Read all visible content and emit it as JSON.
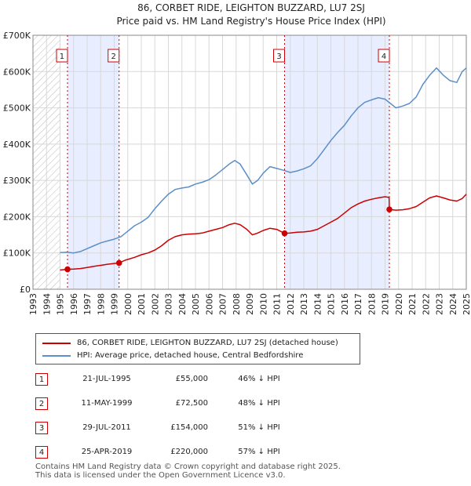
{
  "chart_data": {
    "type": "line",
    "title": "86, CORBET RIDE, LEIGHTON BUZZARD, LU7 2SJ",
    "subtitle": "Price paid vs. HM Land Registry's House Price Index (HPI)",
    "xlim": [
      1993,
      2025
    ],
    "ylim": [
      0,
      700000
    ],
    "xticks": [
      "1993",
      "1994",
      "1995",
      "1996",
      "1997",
      "1998",
      "1999",
      "2000",
      "2001",
      "2002",
      "2003",
      "2004",
      "2005",
      "2006",
      "2007",
      "2008",
      "2009",
      "2010",
      "2011",
      "2012",
      "2013",
      "2014",
      "2015",
      "2016",
      "2017",
      "2018",
      "2019",
      "2020",
      "2021",
      "2022",
      "2023",
      "2024",
      "2025"
    ],
    "yticks": [
      {
        "value": 0,
        "label": "£0"
      },
      {
        "value": 100000,
        "label": "£100K"
      },
      {
        "value": 200000,
        "label": "£200K"
      },
      {
        "value": 300000,
        "label": "£300K"
      },
      {
        "value": 400000,
        "label": "£400K"
      },
      {
        "value": 500000,
        "label": "£500K"
      },
      {
        "value": 600000,
        "label": "£600K"
      },
      {
        "value": 700000,
        "label": "£700K"
      }
    ],
    "hatched_range": [
      1993,
      1995.0
    ],
    "series": [
      {
        "name": "86, CORBET RIDE, LEIGHTON BUZZARD, LU7 2SJ (detached house)",
        "color": "#cc0000",
        "points": [
          [
            1995.0,
            53000
          ],
          [
            1995.55,
            55000
          ],
          [
            1996.0,
            55500
          ],
          [
            1996.5,
            57000
          ],
          [
            1997.0,
            60000
          ],
          [
            1997.5,
            63000
          ],
          [
            1998.0,
            66000
          ],
          [
            1998.5,
            69000
          ],
          [
            1999.0,
            71000
          ],
          [
            1999.36,
            72500
          ],
          [
            1999.8,
            80000
          ],
          [
            2000.5,
            88000
          ],
          [
            2001.0,
            95000
          ],
          [
            2001.5,
            100000
          ],
          [
            2002.0,
            108000
          ],
          [
            2002.5,
            120000
          ],
          [
            2003.0,
            135000
          ],
          [
            2003.5,
            145000
          ],
          [
            2004.0,
            150000
          ],
          [
            2004.5,
            152000
          ],
          [
            2005.0,
            153000
          ],
          [
            2005.5,
            155000
          ],
          [
            2006.0,
            160000
          ],
          [
            2006.5,
            165000
          ],
          [
            2007.0,
            170000
          ],
          [
            2007.5,
            178000
          ],
          [
            2007.9,
            182000
          ],
          [
            2008.3,
            178000
          ],
          [
            2008.8,
            165000
          ],
          [
            2009.2,
            150000
          ],
          [
            2009.6,
            155000
          ],
          [
            2010.0,
            162000
          ],
          [
            2010.5,
            168000
          ],
          [
            2011.0,
            165000
          ],
          [
            2011.58,
            154000
          ],
          [
            2012.0,
            155000
          ],
          [
            2012.5,
            157000
          ],
          [
            2013.0,
            158000
          ],
          [
            2013.5,
            160000
          ],
          [
            2014.0,
            165000
          ],
          [
            2014.5,
            175000
          ],
          [
            2015.0,
            185000
          ],
          [
            2015.5,
            195000
          ],
          [
            2016.0,
            210000
          ],
          [
            2016.5,
            225000
          ],
          [
            2017.0,
            235000
          ],
          [
            2017.5,
            243000
          ],
          [
            2018.0,
            248000
          ],
          [
            2018.5,
            252000
          ],
          [
            2019.0,
            255000
          ],
          [
            2019.3,
            253000
          ],
          [
            2019.32,
            220000
          ],
          [
            2019.8,
            218000
          ],
          [
            2020.3,
            219000
          ],
          [
            2020.8,
            222000
          ],
          [
            2021.3,
            228000
          ],
          [
            2021.8,
            240000
          ],
          [
            2022.3,
            252000
          ],
          [
            2022.8,
            257000
          ],
          [
            2023.3,
            252000
          ],
          [
            2023.8,
            246000
          ],
          [
            2024.3,
            243000
          ],
          [
            2024.7,
            250000
          ],
          [
            2025.0,
            262000
          ]
        ]
      },
      {
        "name": "HPI: Average price, detached house, Central Bedfordshire",
        "color": "#5b8fc7",
        "points": [
          [
            1995.0,
            101000
          ],
          [
            1995.5,
            102000
          ],
          [
            1996.0,
            100000
          ],
          [
            1996.5,
            104000
          ],
          [
            1997.0,
            112000
          ],
          [
            1997.5,
            120000
          ],
          [
            1998.0,
            128000
          ],
          [
            1998.5,
            133000
          ],
          [
            1999.0,
            138000
          ],
          [
            1999.5,
            145000
          ],
          [
            2000.0,
            160000
          ],
          [
            2000.5,
            175000
          ],
          [
            2001.0,
            185000
          ],
          [
            2001.5,
            198000
          ],
          [
            2002.0,
            222000
          ],
          [
            2002.5,
            243000
          ],
          [
            2003.0,
            262000
          ],
          [
            2003.5,
            275000
          ],
          [
            2004.0,
            279000
          ],
          [
            2004.5,
            282000
          ],
          [
            2005.0,
            290000
          ],
          [
            2005.5,
            295000
          ],
          [
            2006.0,
            302000
          ],
          [
            2006.5,
            315000
          ],
          [
            2007.0,
            330000
          ],
          [
            2007.5,
            345000
          ],
          [
            2007.9,
            355000
          ],
          [
            2008.3,
            345000
          ],
          [
            2008.8,
            315000
          ],
          [
            2009.2,
            290000
          ],
          [
            2009.6,
            300000
          ],
          [
            2010.0,
            320000
          ],
          [
            2010.5,
            338000
          ],
          [
            2011.0,
            333000
          ],
          [
            2011.5,
            328000
          ],
          [
            2012.0,
            322000
          ],
          [
            2012.5,
            326000
          ],
          [
            2013.0,
            332000
          ],
          [
            2013.5,
            340000
          ],
          [
            2014.0,
            360000
          ],
          [
            2014.5,
            385000
          ],
          [
            2015.0,
            410000
          ],
          [
            2015.5,
            432000
          ],
          [
            2016.0,
            452000
          ],
          [
            2016.5,
            478000
          ],
          [
            2017.0,
            500000
          ],
          [
            2017.5,
            515000
          ],
          [
            2018.0,
            522000
          ],
          [
            2018.5,
            528000
          ],
          [
            2019.0,
            524000
          ],
          [
            2019.4,
            512000
          ],
          [
            2019.8,
            500000
          ],
          [
            2020.3,
            505000
          ],
          [
            2020.8,
            512000
          ],
          [
            2021.3,
            530000
          ],
          [
            2021.8,
            565000
          ],
          [
            2022.3,
            590000
          ],
          [
            2022.8,
            610000
          ],
          [
            2023.3,
            590000
          ],
          [
            2023.8,
            575000
          ],
          [
            2024.3,
            570000
          ],
          [
            2024.7,
            600000
          ],
          [
            2025.0,
            610000
          ]
        ]
      }
    ],
    "sales": [
      {
        "id": "1",
        "date": "21-JUL-1995",
        "x": 1995.55,
        "price": 55000,
        "price_label": "£55,000",
        "hpi_delta": "46% ↓ HPI"
      },
      {
        "id": "2",
        "date": "11-MAY-1999",
        "x": 1999.36,
        "price": 72500,
        "price_label": "£72,500",
        "hpi_delta": "48% ↓ HPI"
      },
      {
        "id": "3",
        "date": "29-JUL-2011",
        "x": 2011.58,
        "price": 154000,
        "price_label": "£154,000",
        "hpi_delta": "51% ↓ HPI"
      },
      {
        "id": "4",
        "date": "25-APR-2019",
        "x": 2019.32,
        "price": 220000,
        "price_label": "£220,000",
        "hpi_delta": "57% ↓ HPI"
      }
    ],
    "shaded_ranges": [
      [
        1995.55,
        1999.36
      ],
      [
        2011.58,
        2019.32
      ]
    ]
  },
  "legend": {
    "red_label": "86, CORBET RIDE, LEIGHTON BUZZARD, LU7 2SJ (detached house)",
    "blue_label": "HPI: Average price, detached house, Central Bedfordshire"
  },
  "colors": {
    "red": "#cc0000",
    "blue": "#5b8fc7",
    "shade": "#e8eeff",
    "grid": "#d8d8d8"
  },
  "footer": {
    "line1": "Contains HM Land Registry data © Crown copyright and database right 2025.",
    "line2": "This data is licensed under the Open Government Licence v3.0."
  }
}
